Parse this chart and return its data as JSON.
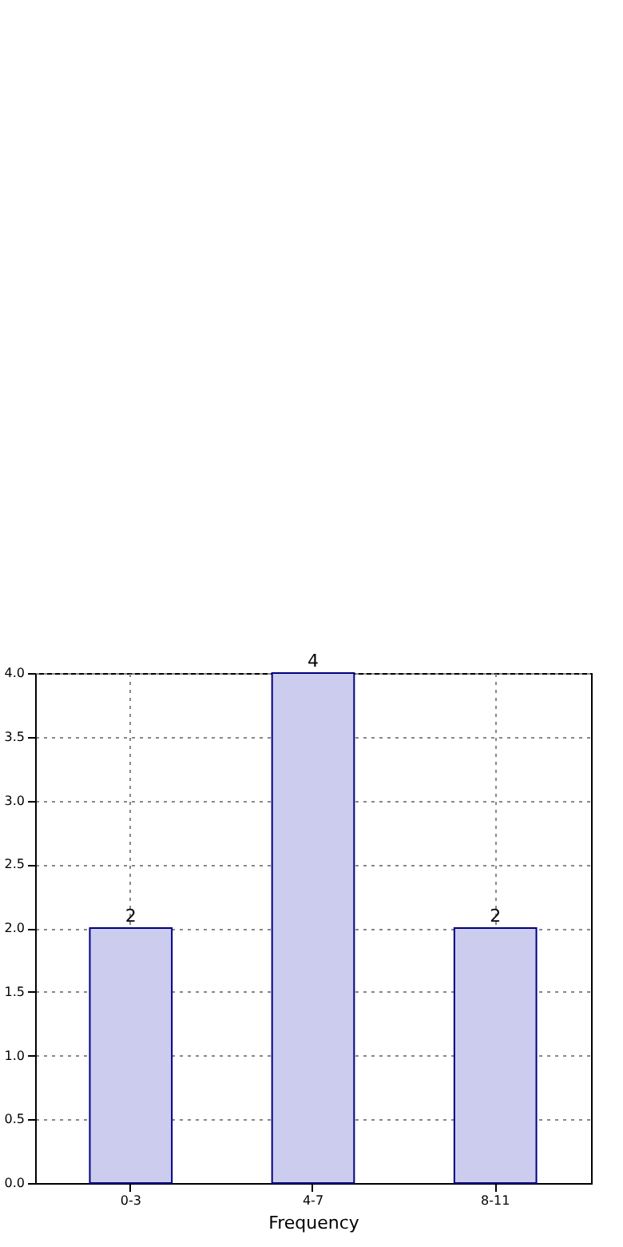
{
  "chart_data": {
    "type": "bar",
    "xlabel": "Frequency",
    "categories": [
      "0-3",
      "4-7",
      "8-11"
    ],
    "values": [
      2,
      4,
      2
    ],
    "color": "#ccccee",
    "ylim": [
      0,
      4
    ],
    "yticks": [
      {
        "value": 0,
        "label": "0.0"
      },
      {
        "value": 0.5,
        "label": "0.5"
      },
      {
        "value": 1,
        "label": "1.0"
      },
      {
        "value": 1.5,
        "label": "1.5"
      },
      {
        "value": 2,
        "label": "2.0"
      },
      {
        "value": 2.5,
        "label": "2.5"
      },
      {
        "value": 3,
        "label": "3.0"
      },
      {
        "value": 3.5,
        "label": "3.5"
      },
      {
        "value": 4,
        "label": "4.0"
      }
    ],
    "grid": true,
    "data_labels": true
  }
}
